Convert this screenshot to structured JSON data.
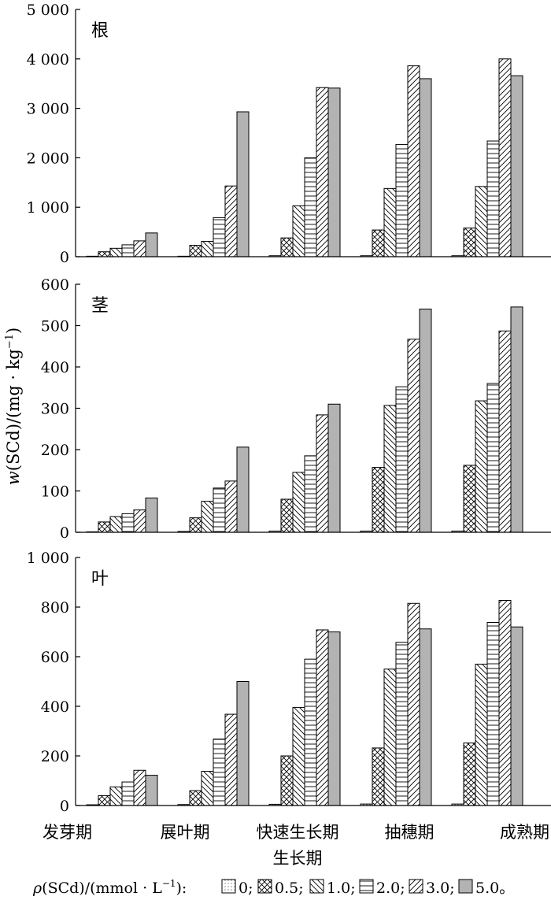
{
  "chart_data": {
    "type": "bar",
    "categories": [
      "发芽期",
      "展叶期",
      "快速生长期",
      "抽穗期",
      "成熟期"
    ],
    "xlabel": "生长期",
    "ylabel": "w(SCd)/(mg·kg⁻¹)",
    "ylabel_prefix": "w",
    "ylabel_rest": "(SCd)/(mg · kg",
    "ylabel_sup": "−1",
    "ylabel_close": ")",
    "legend": {
      "prefix_symbol": "ρ",
      "prefix_text": "(SCd)/(mmol · L",
      "prefix_sup": "−1",
      "prefix_end": "):",
      "entries": [
        "0;",
        "0.5;",
        "1.0;",
        "2.0;",
        "3.0;",
        "5.0。"
      ]
    },
    "series_names": [
      "0",
      "0.5",
      "1.0",
      "2.0",
      "3.0",
      "5.0"
    ],
    "panels": [
      {
        "label": "根",
        "ylim": [
          0,
          5000
        ],
        "yticks": [
          0,
          1000,
          2000,
          3000,
          4000,
          5000
        ],
        "ytick_labels": [
          "0",
          "1 000",
          "2 000",
          "3 000",
          "4 000",
          "5 000"
        ],
        "series": [
          {
            "name": "0",
            "values": [
              10,
              10,
              20,
              20,
              20
            ]
          },
          {
            "name": "0.5",
            "values": [
              100,
              230,
              380,
              540,
              580
            ]
          },
          {
            "name": "1.0",
            "values": [
              170,
              310,
              1030,
              1380,
              1420
            ]
          },
          {
            "name": "2.0",
            "values": [
              240,
              790,
              2000,
              2270,
              2340
            ]
          },
          {
            "name": "3.0",
            "values": [
              320,
              1430,
              3420,
              3860,
              4000
            ]
          },
          {
            "name": "5.0",
            "values": [
              480,
              2930,
              3410,
              3600,
              3660
            ]
          }
        ]
      },
      {
        "label": "茎",
        "ylim": [
          0,
          600
        ],
        "yticks": [
          0,
          100,
          200,
          300,
          400,
          500,
          600
        ],
        "ytick_labels": [
          "0",
          "100",
          "200",
          "300",
          "400",
          "500",
          "600"
        ],
        "series": [
          {
            "name": "0",
            "values": [
              1,
              2,
              3,
              3,
              3
            ]
          },
          {
            "name": "0.5",
            "values": [
              25,
              35,
              80,
              157,
              162
            ]
          },
          {
            "name": "1.0",
            "values": [
              38,
              75,
              145,
              307,
              318
            ]
          },
          {
            "name": "2.0",
            "values": [
              45,
              107,
              185,
              352,
              360
            ]
          },
          {
            "name": "3.0",
            "values": [
              54,
              124,
              284,
              467,
              487
            ]
          },
          {
            "name": "5.0",
            "values": [
              83,
              206,
              310,
              540,
              545
            ]
          }
        ]
      },
      {
        "label": "叶",
        "ylim": [
          0,
          1000
        ],
        "yticks": [
          0,
          200,
          400,
          600,
          800,
          1000
        ],
        "ytick_labels": [
          "0",
          "200",
          "400",
          "600",
          "800",
          "1 000"
        ],
        "series": [
          {
            "name": "0",
            "values": [
              3,
              4,
              5,
              6,
              6
            ]
          },
          {
            "name": "0.5",
            "values": [
              40,
              60,
              200,
              232,
              252
            ]
          },
          {
            "name": "1.0",
            "values": [
              75,
              138,
              395,
              550,
              570
            ]
          },
          {
            "name": "2.0",
            "values": [
              95,
              268,
              590,
              658,
              738
            ]
          },
          {
            "name": "3.0",
            "values": [
              142,
              368,
              708,
              815,
              827
            ]
          },
          {
            "name": "5.0",
            "values": [
              122,
              500,
              700,
              712,
              720
            ]
          }
        ]
      }
    ]
  }
}
